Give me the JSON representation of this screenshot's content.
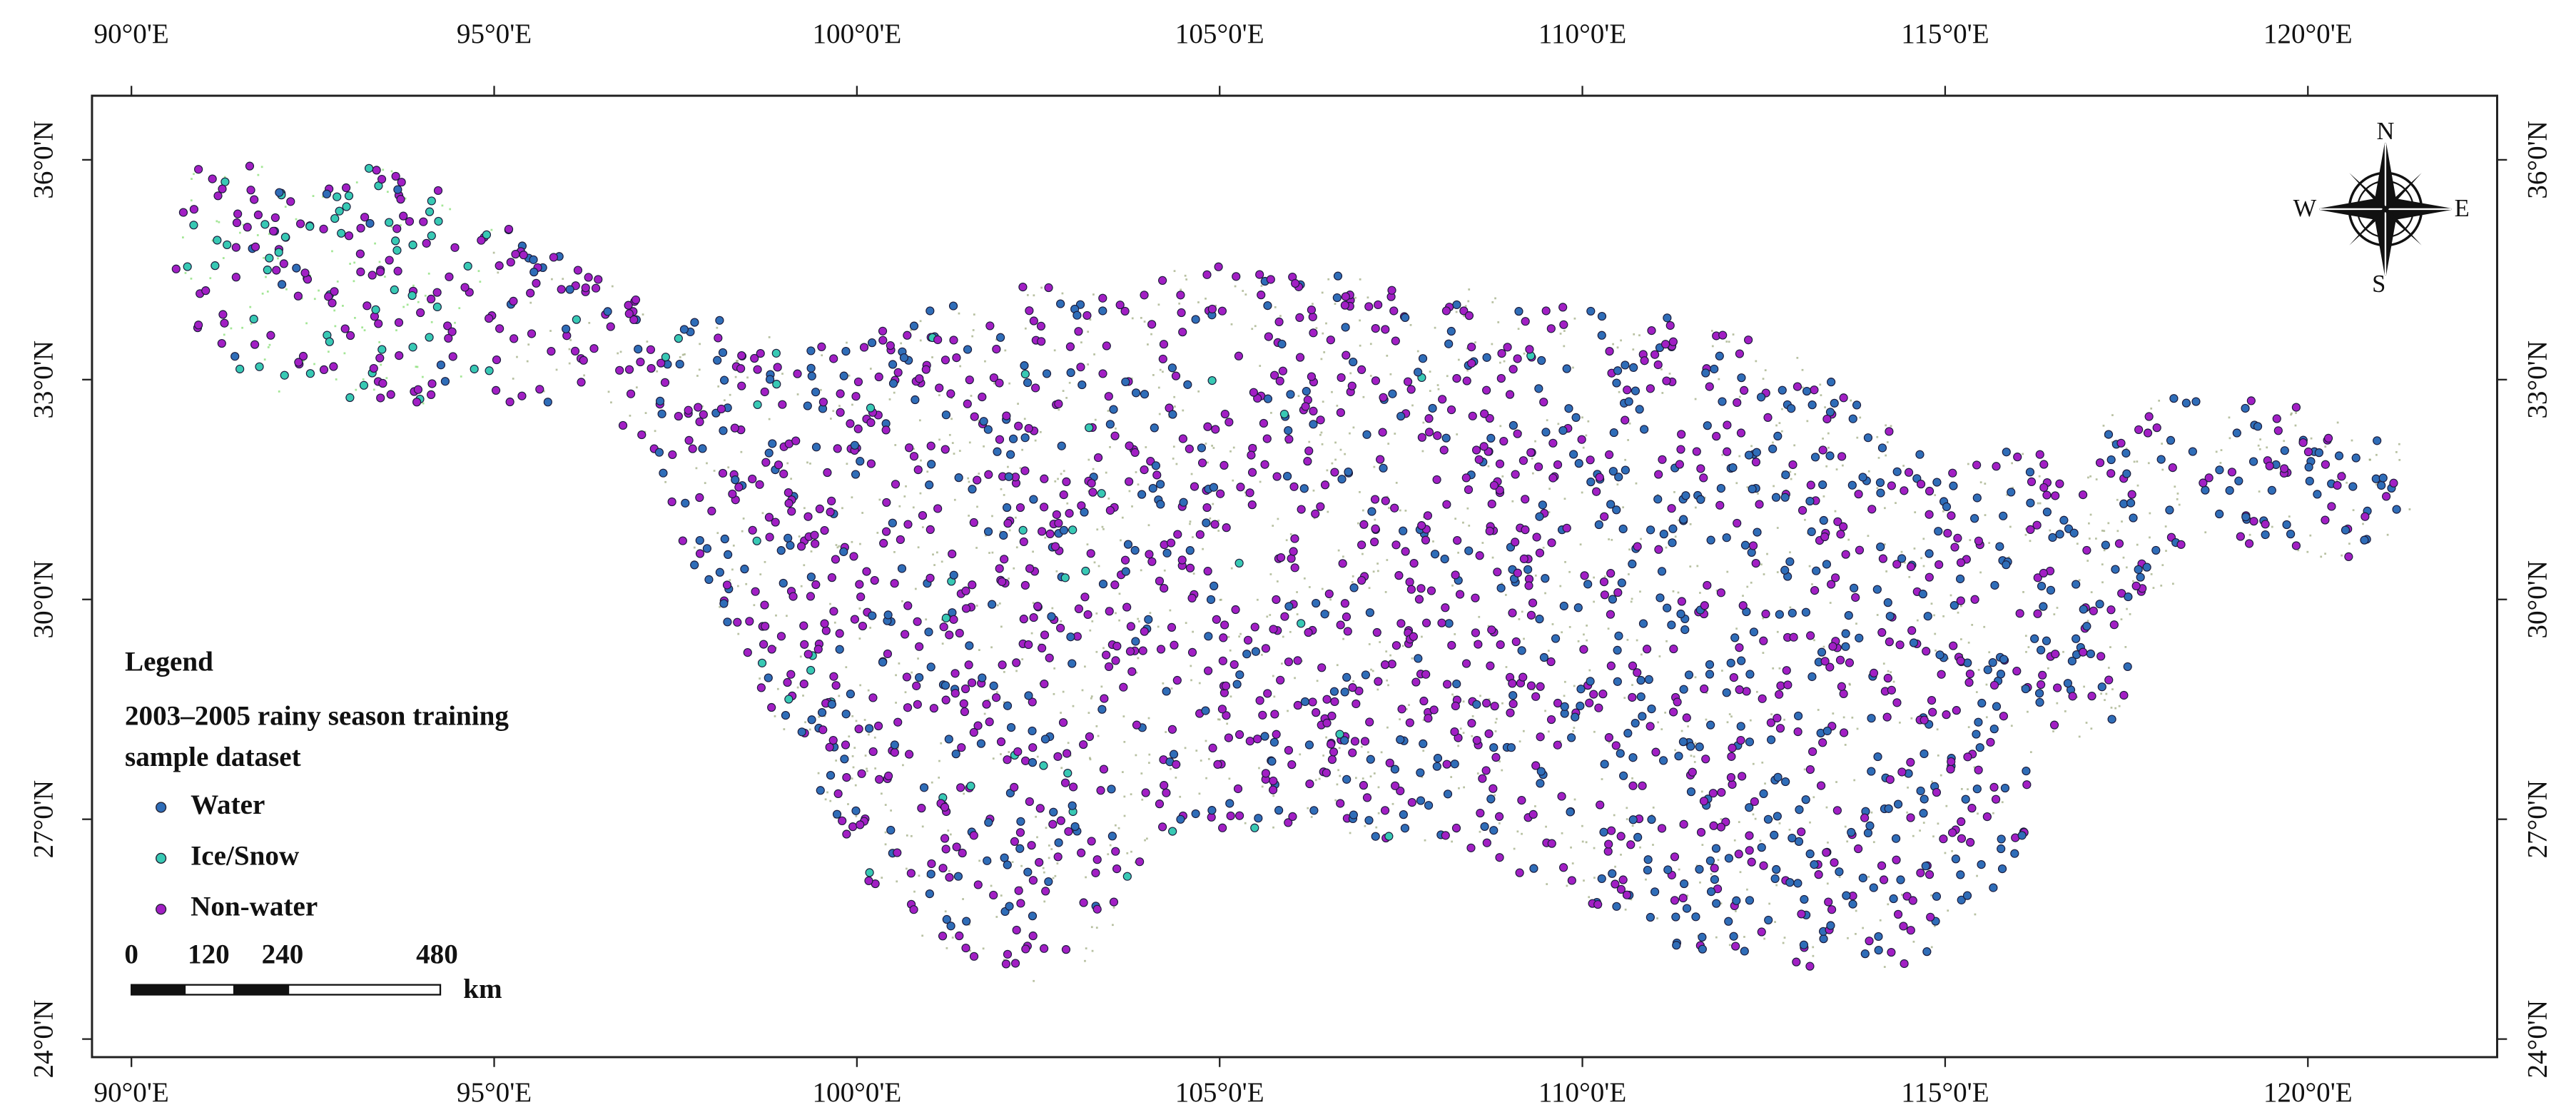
{
  "graticule": {
    "longitude_labels": [
      "90°0'E",
      "95°0'E",
      "100°0'E",
      "105°0'E",
      "110°0'E",
      "115°0'E",
      "120°0'E"
    ],
    "latitude_labels": [
      "36°0'N",
      "33°0'N",
      "30°0'N",
      "27°0'N",
      "24°0'N"
    ]
  },
  "legend": {
    "title": "Legend",
    "subtitle_lines": [
      "2003–2005 rainy season training",
      "sample dataset"
    ],
    "items": [
      {
        "label": "Water",
        "color": "#2f6db8"
      },
      {
        "label": "Ice/Snow",
        "color": "#38c9b4"
      },
      {
        "label": "Non-water",
        "color": "#a21fc4"
      }
    ]
  },
  "scale_bar": {
    "labels": [
      "0",
      "120",
      "240",
      "480"
    ],
    "unit": "km"
  },
  "compass": {
    "north": "N",
    "south": "S",
    "east": "E",
    "west": "W"
  }
}
